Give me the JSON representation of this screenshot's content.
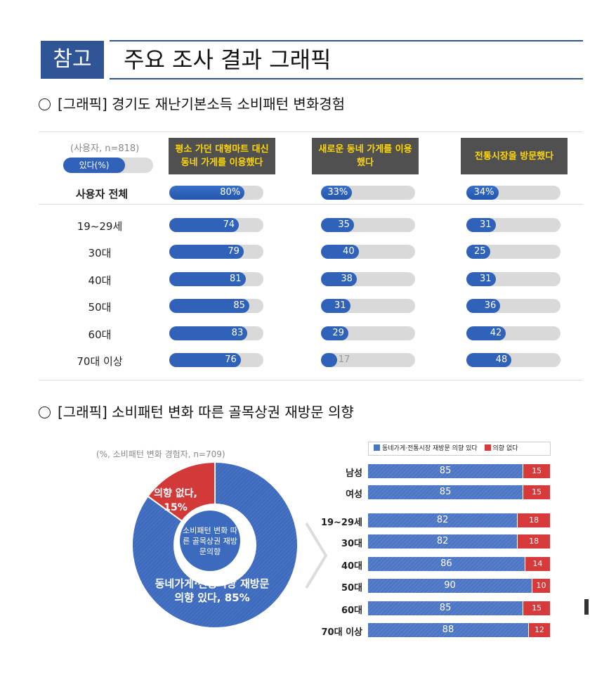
{
  "header": {
    "badge": "참고",
    "title": "주요 조사 결과 그래픽"
  },
  "section1": {
    "title": "[그래픽] 경기도 재난기본소득 소비패턴 변화경험"
  },
  "section2": {
    "title": "[그래픽] 소비패턴 변화 따른 골목상권 재방문 의향"
  },
  "chart_data": [
    {
      "type": "bar",
      "sample_note": "(사용자, n=818)",
      "legend": [
        {
          "label": "있다(%)",
          "color": "#2f62b8"
        }
      ],
      "columns": [
        "평소 가던 대형마트 대신 동네 가게를 이용했다",
        "새로운 동네 가게를 이용했다",
        "전통시장을 방문했다"
      ],
      "categories": [
        "사용자 전체",
        "19~29세",
        "30대",
        "40대",
        "50대",
        "60대",
        "70대 이상"
      ],
      "series": [
        {
          "name": "평소 가던 대형마트 대신 동네 가게를 이용했다",
          "values": [
            80,
            74,
            79,
            81,
            85,
            83,
            76
          ]
        },
        {
          "name": "새로운 동네 가게를 이용했다",
          "values": [
            33,
            35,
            40,
            38,
            31,
            29,
            17
          ]
        },
        {
          "name": "전통시장을 방문했다",
          "values": [
            34,
            31,
            25,
            31,
            36,
            42,
            48
          ]
        }
      ],
      "total_labels": [
        "80%",
        "33%",
        "34%"
      ],
      "ylim": [
        0,
        100
      ]
    },
    {
      "type": "pie",
      "sample_note": "(%, 소비패턴 변화 경험자, n=709)",
      "center_label": "소비패턴 변화 따른 골목상권 재방문의향",
      "slices": [
        {
          "label": "동네가게·전통시장 재방문 의향 있다, 85%",
          "value": 85,
          "color": "#3f6bbf"
        },
        {
          "label": "의향 없다, 15%",
          "value": 15,
          "color": "#d23a3a"
        }
      ]
    },
    {
      "type": "bar",
      "orientation": "horizontal-stacked",
      "legend": [
        {
          "label": "동네가게·전통시장 재방문 의향 있다",
          "color": "#4a74c4"
        },
        {
          "label": "의향 없다",
          "color": "#d63a3a"
        }
      ],
      "categories": [
        "남성",
        "여성",
        "19~29세",
        "30대",
        "40대",
        "50대",
        "60대",
        "70대 이상"
      ],
      "series": [
        {
          "name": "동네가게·전통시장 재방문 의향 있다",
          "values": [
            85,
            85,
            82,
            82,
            86,
            90,
            85,
            88
          ]
        },
        {
          "name": "의향 없다",
          "values": [
            15,
            15,
            18,
            18,
            14,
            10,
            15,
            12
          ]
        }
      ],
      "xlim": [
        0,
        100
      ]
    }
  ]
}
